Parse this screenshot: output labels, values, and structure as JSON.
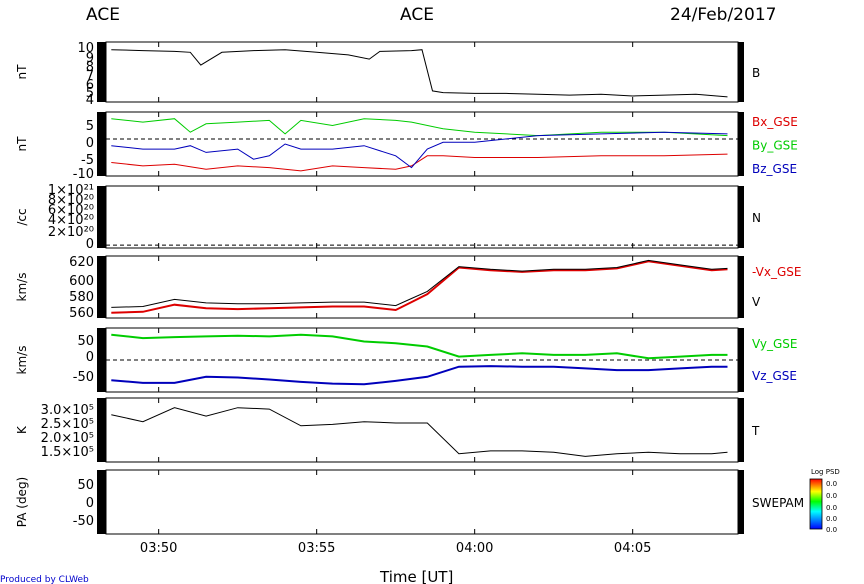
{
  "header": {
    "left": "ACE",
    "center": "ACE",
    "right": "24/Feb/2017"
  },
  "footer": {
    "credit": "Produced by CLWeb",
    "xlabel": "Time [UT]"
  },
  "colorbar": {
    "title": "Log PSD",
    "ticks": [
      "0.0",
      "0.0",
      "0.0",
      "0.0",
      "0.0"
    ]
  },
  "chart_data": [
    {
      "type": "line",
      "name": "B",
      "ylabel": "nT",
      "ylim": [
        3.5,
        10.5
      ],
      "ytick_labels": [
        "10",
        "9",
        "8",
        "7",
        "6",
        "5",
        "4"
      ],
      "legend": [
        {
          "label": "B",
          "color": "#000000"
        }
      ],
      "series": [
        {
          "name": "B",
          "color": "#000000",
          "x": [
            "03:48:30",
            "03:49:30",
            "03:50:30",
            "03:51:00",
            "03:51:20",
            "03:52:00",
            "03:53:00",
            "03:54:00",
            "03:55:00",
            "03:56:00",
            "03:56:40",
            "03:57:00",
            "03:58:00",
            "03:58:20",
            "03:58:40",
            "03:59:00",
            "04:00:00",
            "04:01:00",
            "04:02:00",
            "04:03:00",
            "04:04:00",
            "04:05:00",
            "04:06:00",
            "04:07:00",
            "04:08:00"
          ],
          "y": [
            9.6,
            9.5,
            9.4,
            9.3,
            7.8,
            9.3,
            9.5,
            9.6,
            9.3,
            9.0,
            8.5,
            9.4,
            9.5,
            9.6,
            4.8,
            4.6,
            4.5,
            4.5,
            4.4,
            4.3,
            4.4,
            4.2,
            4.3,
            4.4,
            4.1
          ]
        }
      ]
    },
    {
      "type": "line",
      "name": "B-components",
      "ylabel": "nT",
      "ylim": [
        -11,
        8
      ],
      "ytick_labels": [
        "5",
        "0",
        "-5",
        "-10"
      ],
      "reference_line": 0,
      "legend": [
        {
          "label": "Bx_GSE",
          "color": "#dd0000"
        },
        {
          "label": "By_GSE",
          "color": "#00cc00"
        },
        {
          "label": "Bz_GSE",
          "color": "#0000bb"
        }
      ],
      "series": [
        {
          "name": "Bx_GSE",
          "color": "#dd0000",
          "x": [
            "03:48:30",
            "03:49:30",
            "03:50:30",
            "03:51:30",
            "03:52:30",
            "03:53:30",
            "03:54:30",
            "03:55:30",
            "03:56:30",
            "03:57:30",
            "03:58:00",
            "03:58:30",
            "03:59:00",
            "04:00:00",
            "04:02:00",
            "04:04:00",
            "04:06:00",
            "04:08:00"
          ],
          "y": [
            -7.0,
            -8.0,
            -7.5,
            -9.0,
            -8.0,
            -8.5,
            -9.5,
            -8.0,
            -8.5,
            -9.0,
            -8.0,
            -5.0,
            -5.0,
            -5.5,
            -5.5,
            -5.0,
            -5.0,
            -4.5
          ]
        },
        {
          "name": "By_GSE",
          "color": "#00cc00",
          "x": [
            "03:48:30",
            "03:49:30",
            "03:50:30",
            "03:51:00",
            "03:51:30",
            "03:52:30",
            "03:53:30",
            "03:54:00",
            "03:54:30",
            "03:55:30",
            "03:56:30",
            "03:57:30",
            "03:58:00",
            "03:59:00",
            "04:00:00",
            "04:02:00",
            "04:04:00",
            "04:06:00",
            "04:08:00"
          ],
          "y": [
            6.0,
            5.0,
            6.0,
            2.0,
            4.5,
            5.0,
            5.5,
            1.5,
            5.5,
            4.0,
            6.0,
            5.5,
            5.0,
            3.0,
            2.0,
            1.0,
            2.0,
            2.0,
            1.0
          ]
        },
        {
          "name": "Bz_GSE",
          "color": "#0000bb",
          "x": [
            "03:48:30",
            "03:49:30",
            "03:50:30",
            "03:51:00",
            "03:51:30",
            "03:52:30",
            "03:53:00",
            "03:53:30",
            "03:54:00",
            "03:54:30",
            "03:55:30",
            "03:56:30",
            "03:57:30",
            "03:58:00",
            "03:58:30",
            "03:59:00",
            "04:00:00",
            "04:02:00",
            "04:04:00",
            "04:06:00",
            "04:08:00"
          ],
          "y": [
            -2.0,
            -3.0,
            -3.0,
            -2.0,
            -4.0,
            -3.0,
            -6.0,
            -5.0,
            -1.5,
            -3.0,
            -3.0,
            -2.0,
            -5.0,
            -8.5,
            -3.0,
            -1.0,
            -1.0,
            1.0,
            1.5,
            2.0,
            1.5
          ]
        }
      ]
    },
    {
      "type": "line",
      "name": "N",
      "ylabel": "/cc",
      "ylim": [
        -5e+19,
        1.05e+21
      ],
      "ytick_labels": [
        "1×10²¹",
        "8×10²⁰",
        "6×10²⁰",
        "4×10²⁰",
        "2×10²⁰",
        "0"
      ],
      "reference_line": 0,
      "legend": [
        {
          "label": "N",
          "color": "#000000"
        }
      ],
      "series": []
    },
    {
      "type": "line",
      "name": "V",
      "ylabel": "km/s",
      "ylim": [
        555,
        625
      ],
      "ytick_labels": [
        "620",
        "600",
        "580",
        "560"
      ],
      "legend": [
        {
          "label": "-Vx_GSE",
          "color": "#dd0000"
        },
        {
          "label": "V",
          "color": "#000000"
        }
      ],
      "series": [
        {
          "name": "-Vx_GSE",
          "color": "#dd0000",
          "x": [
            "03:48:30",
            "03:49:30",
            "03:50:30",
            "03:51:30",
            "03:52:30",
            "03:53:30",
            "03:54:30",
            "03:55:30",
            "03:56:30",
            "03:57:30",
            "03:58:00",
            "03:58:30",
            "03:59:30",
            "04:00:30",
            "04:01:30",
            "04:02:30",
            "04:03:30",
            "04:04:30",
            "04:05:30",
            "04:06:30",
            "04:07:30",
            "04:08:00"
          ],
          "y": [
            561,
            562,
            570,
            566,
            565,
            566,
            567,
            568,
            568,
            564,
            573,
            582,
            612,
            609,
            607,
            609,
            609,
            611,
            619,
            614,
            609,
            610
          ]
        },
        {
          "name": "V",
          "color": "#000000",
          "x": [
            "03:48:30",
            "03:49:30",
            "03:50:30",
            "03:51:30",
            "03:52:30",
            "03:53:30",
            "03:54:30",
            "03:55:30",
            "03:56:30",
            "03:57:30",
            "03:58:00",
            "03:58:30",
            "03:59:30",
            "04:00:30",
            "04:01:30",
            "04:02:30",
            "04:03:30",
            "04:04:30",
            "04:05:30",
            "04:06:30",
            "04:07:30",
            "04:08:00"
          ],
          "y": [
            567,
            568,
            576,
            572,
            571,
            571,
            572,
            573,
            573,
            569,
            577,
            585,
            613,
            610,
            608,
            610,
            610,
            612,
            620,
            615,
            610,
            611
          ]
        }
      ]
    },
    {
      "type": "line",
      "name": "Vy-Vz",
      "ylabel": "km/s",
      "ylim": [
        -95,
        95
      ],
      "ytick_labels": [
        "50",
        "0",
        "-50"
      ],
      "reference_line": 0,
      "legend": [
        {
          "label": "Vy_GSE",
          "color": "#00cc00"
        },
        {
          "label": "Vz_GSE",
          "color": "#0000bb"
        }
      ],
      "series": [
        {
          "name": "Vy_GSE",
          "color": "#00cc00",
          "x": [
            "03:48:30",
            "03:49:30",
            "03:50:30",
            "03:51:30",
            "03:52:30",
            "03:53:30",
            "03:54:30",
            "03:55:30",
            "03:56:30",
            "03:57:30",
            "03:58:30",
            "03:59:30",
            "04:00:30",
            "04:01:30",
            "04:02:30",
            "04:03:30",
            "04:04:30",
            "04:05:30",
            "04:06:30",
            "04:07:30",
            "04:08:00"
          ],
          "y": [
            75,
            65,
            68,
            70,
            72,
            70,
            75,
            70,
            55,
            50,
            40,
            10,
            15,
            20,
            15,
            15,
            20,
            5,
            10,
            15,
            15
          ]
        },
        {
          "name": "Vz_GSE",
          "color": "#0000bb",
          "x": [
            "03:48:30",
            "03:49:30",
            "03:50:30",
            "03:51:30",
            "03:52:30",
            "03:53:30",
            "03:54:30",
            "03:55:30",
            "03:56:30",
            "03:57:30",
            "03:58:30",
            "03:59:30",
            "04:00:30",
            "04:01:30",
            "04:02:30",
            "04:03:30",
            "04:04:30",
            "04:05:30",
            "04:06:30",
            "04:07:30",
            "04:08:00"
          ],
          "y": [
            -60,
            -68,
            -68,
            -50,
            -52,
            -58,
            -65,
            -70,
            -72,
            -62,
            -50,
            -20,
            -18,
            -20,
            -20,
            -25,
            -30,
            -30,
            -25,
            -20,
            -20
          ]
        }
      ]
    },
    {
      "type": "line",
      "name": "T",
      "ylabel": "K",
      "ylim": [
        110000,
        340000
      ],
      "ytick_labels": [
        "3.0×10⁵",
        "2.5×10⁵",
        "2.0×10⁵",
        "1.5×10⁵"
      ],
      "legend": [
        {
          "label": "T",
          "color": "#000000"
        }
      ],
      "series": [
        {
          "name": "T",
          "color": "#000000",
          "x": [
            "03:48:30",
            "03:49:30",
            "03:50:30",
            "03:51:30",
            "03:52:30",
            "03:53:30",
            "03:54:30",
            "03:55:30",
            "03:56:30",
            "03:57:30",
            "03:58:30",
            "03:59:30",
            "04:00:30",
            "04:01:30",
            "04:02:30",
            "04:03:30",
            "04:04:30",
            "04:05:30",
            "04:06:30",
            "04:07:30",
            "04:08:00"
          ],
          "y": [
            280000,
            255000,
            305000,
            275000,
            305000,
            300000,
            240000,
            245000,
            255000,
            250000,
            250000,
            140000,
            150000,
            150000,
            145000,
            130000,
            140000,
            145000,
            140000,
            140000,
            145000
          ]
        }
      ]
    },
    {
      "type": "heatmap",
      "name": "SWEPAM",
      "ylabel": "PA (deg)",
      "ylim": [
        -90,
        90
      ],
      "ytick_labels": [
        "50",
        "0",
        "-50"
      ],
      "legend": [
        {
          "label": "SWEPAM",
          "color": "#000000"
        }
      ],
      "series": []
    }
  ],
  "time_axis": {
    "start": "03:48:20",
    "end": "04:08:20",
    "labels": [
      "03:50",
      "03:55",
      "04:00",
      "04:05"
    ]
  }
}
